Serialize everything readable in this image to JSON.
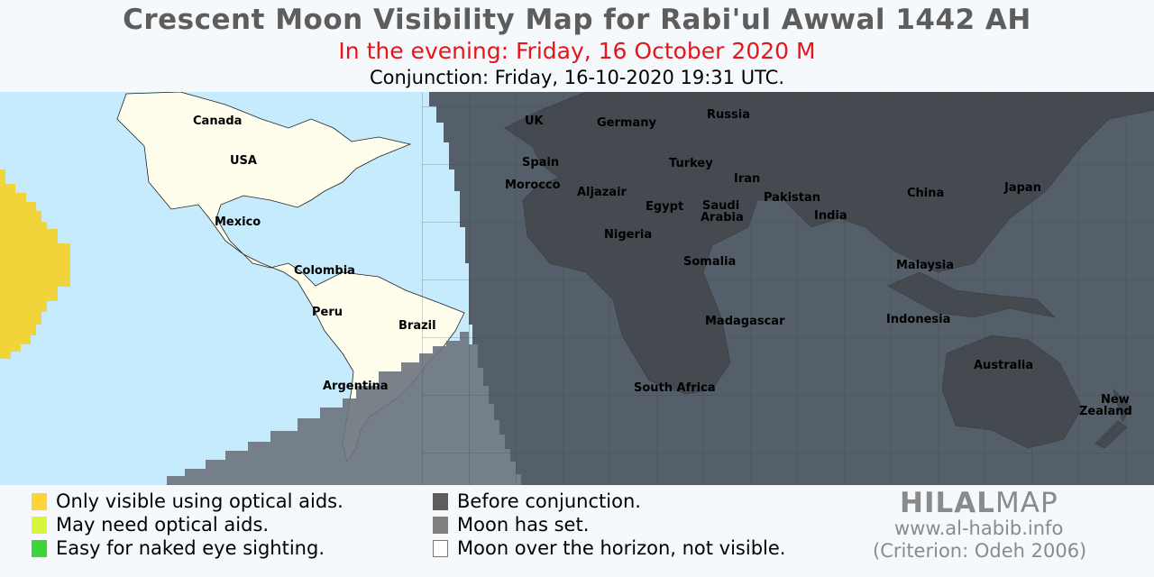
{
  "header": {
    "title": "Crescent Moon Visibility Map for Rabi'ul Awwal 1442 AH",
    "subtitle": "In the evening: Friday, 16 October 2020 M",
    "conjunction": "Conjunction: Friday, 16-10-2020 19:31 UTC."
  },
  "map": {
    "labels": [
      "Canada",
      "USA",
      "Mexico",
      "Colombia",
      "Peru",
      "Brazil",
      "Argentina",
      "UK",
      "Germany",
      "Russia",
      "Spain",
      "Morocco",
      "Aljazair",
      "Turkey",
      "Iran",
      "Egypt",
      "Saudi",
      "Arabia",
      "Pakistan",
      "India",
      "China",
      "Japan",
      "Nigeria",
      "Somalia",
      "Malaysia",
      "Madagascar",
      "Indonesia",
      "South Africa",
      "Australia",
      "New",
      "Zealand"
    ],
    "colors": {
      "ocean": "#c5ebfd",
      "visible_land": "#fffdec",
      "before_conjunction": "#525960",
      "moon_set": "#78808a",
      "optical_aids_only": "#f2d33a"
    }
  },
  "legend": {
    "items": [
      {
        "label": "Only visible using optical aids.",
        "color": "#fdd43a"
      },
      {
        "label": "May need optical aids.",
        "color": "#d9f53b"
      },
      {
        "label": "Easy for naked eye sighting.",
        "color": "#3ad63a"
      },
      {
        "label": "Before conjunction.",
        "color": "#5d5d5d"
      },
      {
        "label": "Moon has set.",
        "color": "#808080"
      },
      {
        "label": "Moon over the horizon, not visible.",
        "color": "#ffffff"
      }
    ]
  },
  "branding": {
    "logo_bold": "HILAL",
    "logo_light": "MAP",
    "website": "www.al-habib.info",
    "criterion": "(Criterion: Odeh 2006)"
  }
}
